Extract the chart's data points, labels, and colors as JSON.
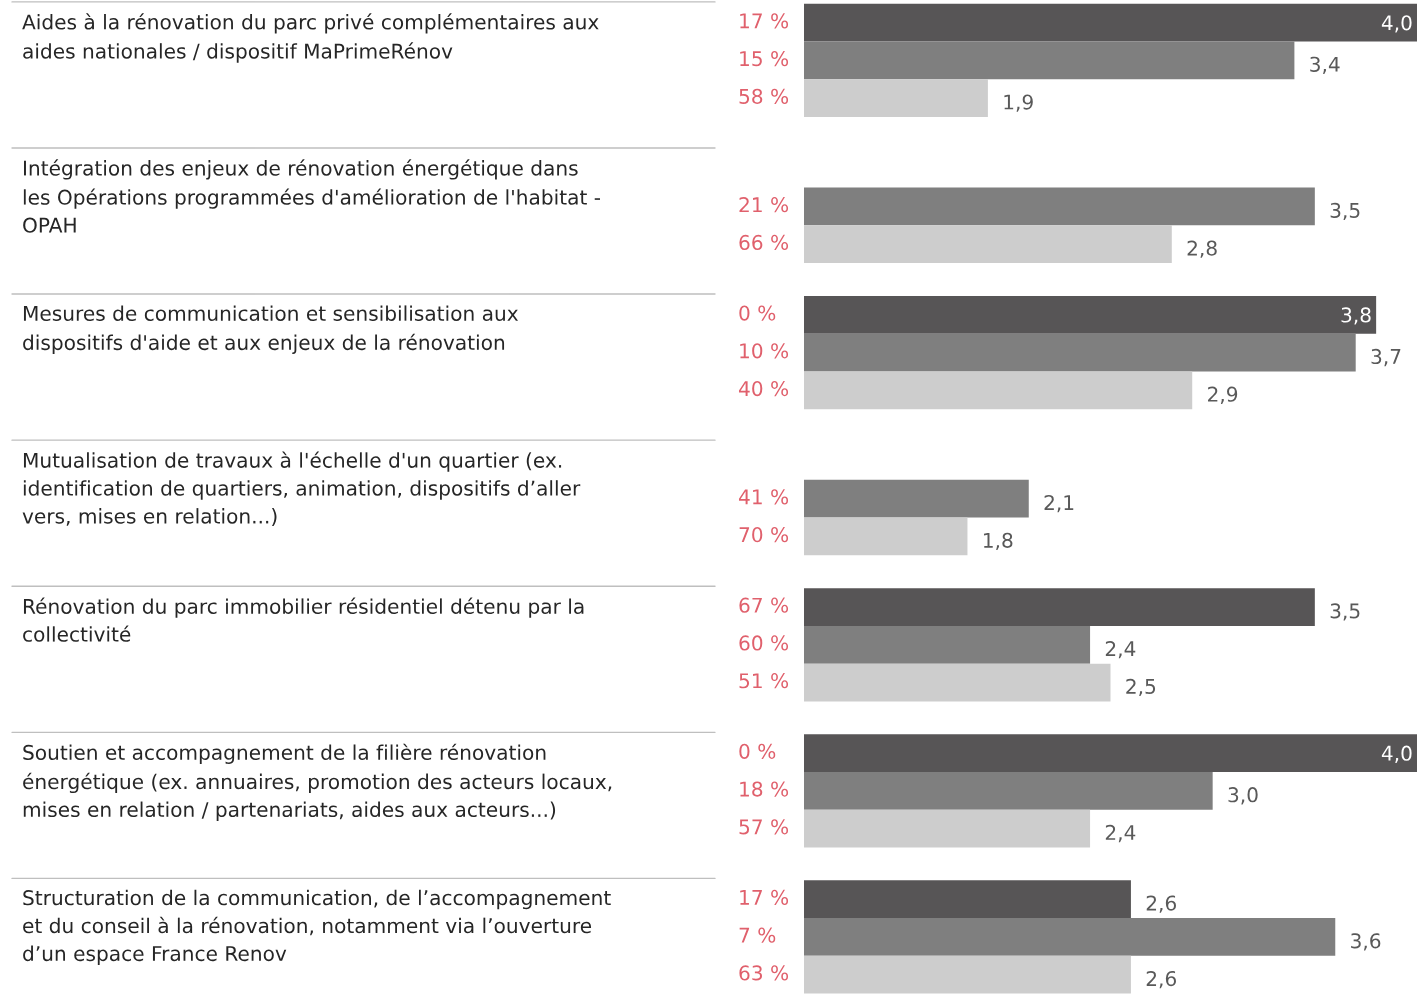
{
  "chart_data": {
    "type": "bar",
    "orientation": "horizontal",
    "xlim": [
      1,
      4
    ],
    "legend": false,
    "categories": [
      "Aides à la rénovation du parc privé complémentaires aux\naides nationales / dispositif MaPrimeRénov",
      "Intégration des enjeux de rénovation énergétique dans\nles Opérations programmées d'amélioration de l'habitat -\nOPAH",
      "Mesures de communication et sensibilisation aux\ndispositifs d'aide et aux enjeux de la rénovation",
      "Mutualisation de travaux à l'échelle d'un quartier (ex.\nidentification de quartiers, animation, dispositifs d’aller\nvers, mises en relation...)",
      "Rénovation du parc immobilier résidentiel détenu par la\ncollectivité",
      "Soutien et accompagnement de la filière rénovation\nénergétique (ex. annuaires, promotion des acteurs locaux,\nmises en relation / partenariats, aides aux acteurs...)",
      "Structuration de la communication, de l’accompagnement\net du conseil à la rénovation, notamment via l’ouverture\nd’un espace France Renov"
    ],
    "series": [
      {
        "color": "#575556",
        "values": [
          4.0,
          null,
          3.8,
          null,
          3.5,
          4.0,
          2.6
        ],
        "value_labels": [
          "4,0",
          null,
          "3,8",
          null,
          "3,5",
          "4,0",
          "2,6"
        ]
      },
      {
        "color": "#7f7f7f",
        "values": [
          3.4,
          3.5,
          3.7,
          2.1,
          2.4,
          3.0,
          3.6
        ],
        "value_labels": [
          "3,4",
          "3,5",
          "3,7",
          "2,1",
          "2,4",
          "3,0",
          "3,6"
        ]
      },
      {
        "color": "#cdcdcd",
        "values": [
          1.9,
          2.8,
          2.9,
          1.8,
          2.5,
          2.4,
          2.6
        ],
        "value_labels": [
          "1,9",
          "2,8",
          "2,9",
          "1,8",
          "2,5",
          "2,4",
          "2,6"
        ]
      }
    ],
    "annotations": [
      "17 %",
      "15 %",
      "58 %",
      "21 %",
      "66 %",
      "0 %",
      "10 %",
      "40 %",
      "41 %",
      "70 %",
      "67 %",
      "60 %",
      "51 %",
      "0 %",
      "18 %",
      "57 %",
      "17 %",
      "7 %",
      "63 %"
    ]
  }
}
